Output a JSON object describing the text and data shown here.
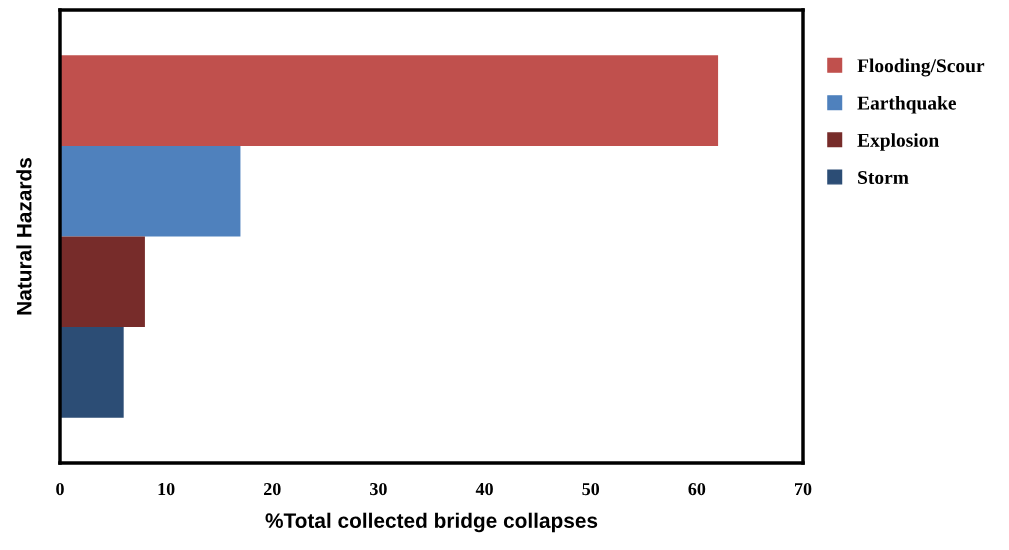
{
  "chart_data": {
    "type": "bar",
    "orientation": "horizontal",
    "xlabel": "%Total collected bridge collapses",
    "ylabel": "Natural Hazards",
    "categories": [
      null
    ],
    "series": [
      {
        "name": "Flooding/Scour",
        "color": "#c0504d",
        "values": [
          62
        ]
      },
      {
        "name": "Earthquake",
        "color": "#4f81bd",
        "values": [
          17
        ]
      },
      {
        "name": "Explosion",
        "color": "#772c2a",
        "values": [
          8
        ]
      },
      {
        "name": "Storm",
        "color": "#2c4d75",
        "values": [
          6
        ]
      }
    ],
    "xlim": [
      0,
      70
    ],
    "xticks": [
      0,
      10,
      20,
      30,
      40,
      50,
      60,
      70
    ],
    "grid": false,
    "legend": "right"
  }
}
